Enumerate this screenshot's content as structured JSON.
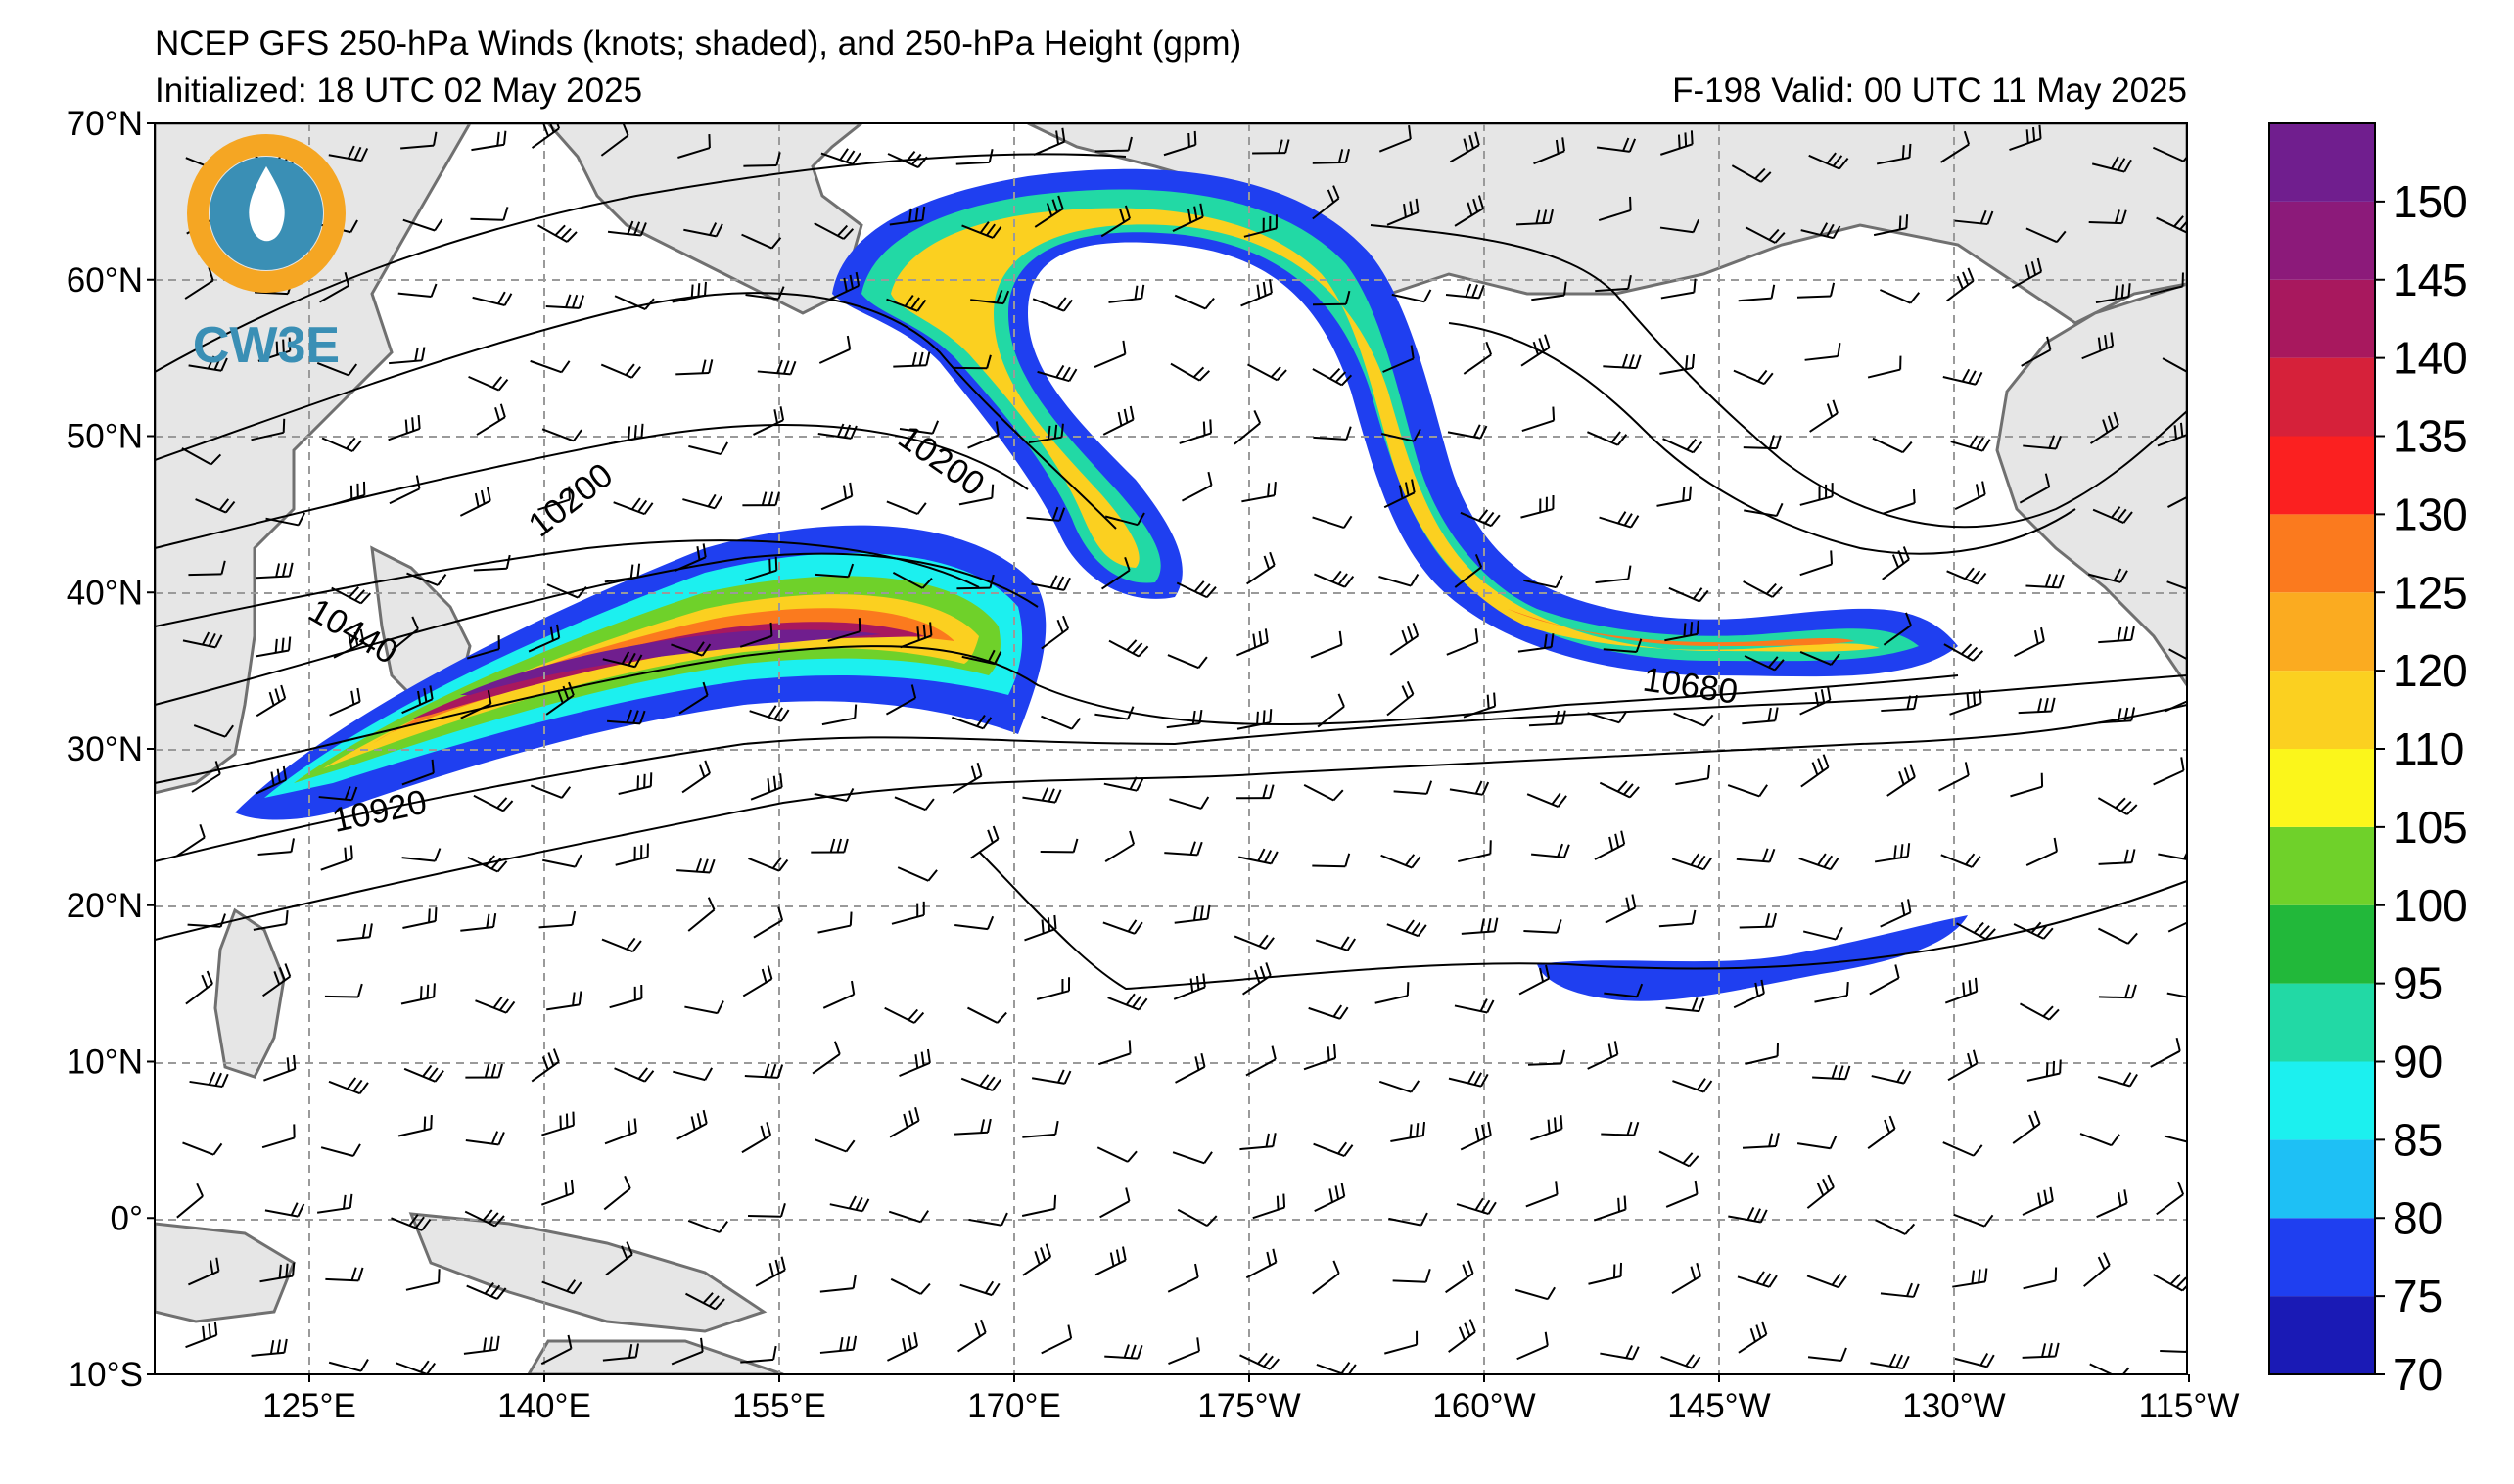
{
  "header": {
    "title": "NCEP GFS 250-hPa Winds (knots; shaded), and 250-hPa Height (gpm)",
    "initialized": "Initialized: 18 UTC 02 May 2025",
    "valid": "F-198  Valid: 00 UTC 11 May 2025"
  },
  "logo": {
    "text": "CW3E"
  },
  "map": {
    "lat_labels": [
      "70°N",
      "60°N",
      "50°N",
      "40°N",
      "30°N",
      "20°N",
      "10°N",
      "0°",
      "10°S"
    ],
    "lon_labels": [
      "125°E",
      "140°E",
      "155°E",
      "170°E",
      "175°W",
      "160°W",
      "145°W",
      "130°W",
      "115°W"
    ],
    "lat_range": [
      -10,
      70
    ],
    "lon_labels_note": "",
    "contour_labels": [
      {
        "text": "10200"
      },
      {
        "text": "10200"
      },
      {
        "text": "10440"
      },
      {
        "text": "10680"
      },
      {
        "text": "10920"
      }
    ]
  },
  "colorbar": {
    "labels": [
      "70",
      "75",
      "80",
      "85",
      "90",
      "95",
      "100",
      "105",
      "110",
      "120",
      "125",
      "130",
      "135",
      "140",
      "145",
      "150"
    ],
    "colors": [
      "#1a1ab5",
      "#1f3ff0",
      "#1ec0f5",
      "#1cf0ef",
      "#22d9a5",
      "#22b83a",
      "#6fd12a",
      "#fbf61b",
      "#fbd020",
      "#fbab20",
      "#fb7a1e",
      "#fb2020",
      "#d6213a",
      "#a8185e",
      "#8c1a7a",
      "#701e8e"
    ]
  },
  "colors": {
    "land": "#e6e6e6",
    "coast": "#707070",
    "grid": "#9a9a9a"
  }
}
